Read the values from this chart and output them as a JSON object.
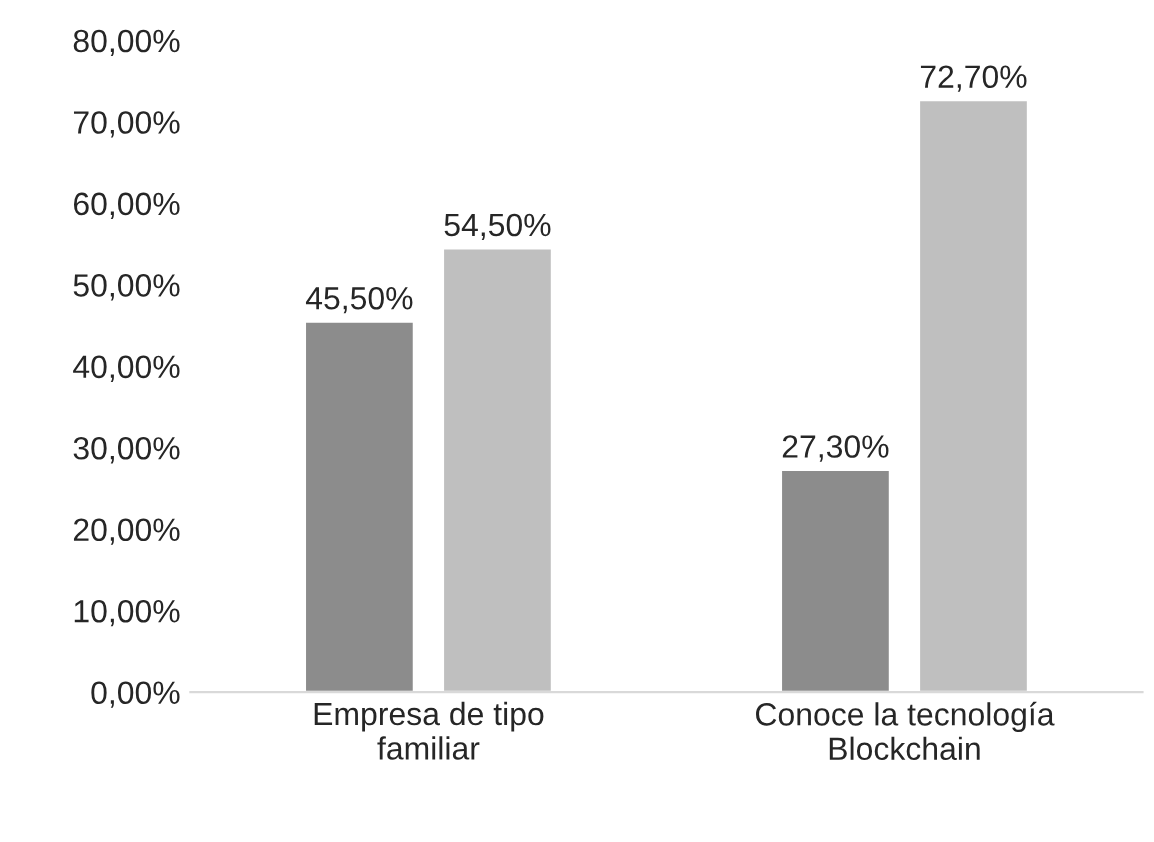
{
  "chart_data": {
    "type": "bar",
    "categories": [
      "Empresa de tipo\nfamiliar",
      "Conoce la tecnología\nBlockchain"
    ],
    "series": [
      {
        "color": "#8c8c8c",
        "values": [
          45.5,
          27.3
        ],
        "value_labels": [
          "45,50%",
          "27,30%"
        ]
      },
      {
        "color": "#bfbfbf",
        "values": [
          54.5,
          72.7
        ],
        "value_labels": [
          "54,50%",
          "72,70%"
        ]
      }
    ],
    "ylim": [
      0,
      80
    ],
    "yticks": [
      {
        "value": 0,
        "label": "0,00%"
      },
      {
        "value": 10,
        "label": "10,00%"
      },
      {
        "value": 20,
        "label": "20,00%"
      },
      {
        "value": 30,
        "label": "30,00%"
      },
      {
        "value": 40,
        "label": "40,00%"
      },
      {
        "value": 50,
        "label": "50,00%"
      },
      {
        "value": 60,
        "label": "60,00%"
      },
      {
        "value": 70,
        "label": "70,00%"
      },
      {
        "value": 80,
        "label": "80,00%"
      }
    ],
    "grid": false,
    "legend": false
  }
}
